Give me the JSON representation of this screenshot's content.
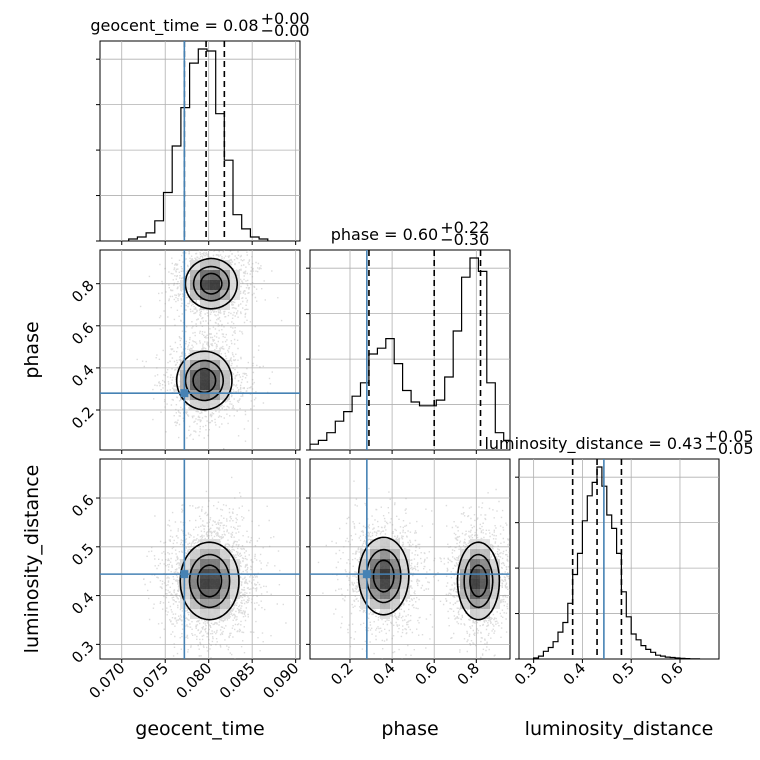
{
  "chart_data": {
    "type": "corner",
    "parameters": [
      "geocent_time",
      "phase",
      "luminosity_distance"
    ],
    "truths": {
      "geocent_time": 0.0772,
      "phase": 0.28,
      "luminosity_distance": 0.444
    },
    "ranges": {
      "geocent_time": [
        0.0675,
        0.0905
      ],
      "phase": [
        0.01,
        0.96
      ],
      "luminosity_distance": [
        0.27,
        0.68
      ]
    },
    "ticks": {
      "geocent_time": [
        "0.070",
        "0.075",
        "0.080",
        "0.085",
        "0.090"
      ],
      "phase": [
        "0.2",
        "0.4",
        "0.6",
        "0.8"
      ],
      "luminosity_distance": [
        "0.3",
        "0.4",
        "0.5",
        "0.6"
      ]
    },
    "titles": {
      "geocent_time": {
        "label": "geocent_time = 0.08",
        "plus": "+0.00",
        "minus": "−0.00"
      },
      "phase": {
        "label": "phase = 0.60",
        "plus": "+0.22",
        "minus": "−0.30"
      },
      "luminosity_distance": {
        "label": "luminosity_distance = 0.43",
        "plus": "+0.05",
        "minus": "−0.05"
      }
    },
    "quantiles": {
      "geocent_time": [
        0.0772,
        0.0797,
        0.0818
      ],
      "phase": [
        0.29,
        0.6,
        0.82
      ],
      "luminosity_distance": [
        0.38,
        0.43,
        0.48
      ]
    },
    "histograms": {
      "geocent_time": {
        "edges": [
          0.0708,
          0.0718,
          0.0728,
          0.0738,
          0.0748,
          0.0758,
          0.0768,
          0.0778,
          0.0788,
          0.0798,
          0.0808,
          0.0818,
          0.0828,
          0.0838,
          0.0848,
          0.0858,
          0.0868
        ],
        "counts": [
          1,
          2,
          4,
          10,
          24,
          47,
          66,
          88,
          95,
          94,
          63,
          40,
          13,
          6,
          2,
          1
        ]
      },
      "phase": {
        "edges": [
          0.01,
          0.05,
          0.09,
          0.13,
          0.17,
          0.21,
          0.25,
          0.29,
          0.33,
          0.37,
          0.41,
          0.45,
          0.49,
          0.53,
          0.57,
          0.61,
          0.65,
          0.69,
          0.73,
          0.77,
          0.81,
          0.85,
          0.89,
          0.93,
          0.96
        ],
        "counts": [
          3,
          5,
          9,
          15,
          20,
          28,
          35,
          50,
          53,
          58,
          45,
          31,
          25,
          23,
          23,
          26,
          38,
          62,
          90,
          100,
          93,
          35,
          9,
          5
        ]
      },
      "luminosity_distance": {
        "edges": [
          0.3,
          0.31,
          0.32,
          0.33,
          0.34,
          0.35,
          0.36,
          0.37,
          0.38,
          0.39,
          0.4,
          0.41,
          0.42,
          0.43,
          0.44,
          0.45,
          0.46,
          0.47,
          0.48,
          0.49,
          0.5,
          0.51,
          0.52,
          0.53,
          0.54,
          0.55,
          0.56,
          0.57,
          0.58,
          0.59,
          0.6,
          0.61,
          0.62,
          0.63,
          0.64
        ],
        "counts": [
          0.5,
          1.5,
          4,
          6,
          9,
          14,
          19,
          29,
          44,
          55,
          72,
          85,
          92,
          100,
          90,
          75,
          68,
          55,
          35,
          22,
          13,
          10,
          7,
          5,
          3.5,
          2,
          1.5,
          1,
          0.8,
          0.5,
          0.3,
          0.2,
          0.1,
          0.1
        ]
      }
    },
    "joint": {
      "phase_vs_geocent_time": {
        "modes": [
          {
            "x": 0.0803,
            "y": 0.8,
            "sx": 0.0015,
            "sy": 0.06
          },
          {
            "x": 0.0795,
            "y": 0.34,
            "sx": 0.0016,
            "sy": 0.07
          }
        ]
      },
      "luminosity_distance_vs_geocent_time": {
        "modes": [
          {
            "x": 0.0801,
            "y": 0.43,
            "sx": 0.0017,
            "sy": 0.04
          }
        ]
      },
      "luminosity_distance_vs_phase": {
        "modes": [
          {
            "x": 0.36,
            "y": 0.44,
            "sx": 0.06,
            "sy": 0.04
          },
          {
            "x": 0.81,
            "y": 0.43,
            "sx": 0.05,
            "sy": 0.04
          }
        ]
      }
    },
    "grid": true
  }
}
